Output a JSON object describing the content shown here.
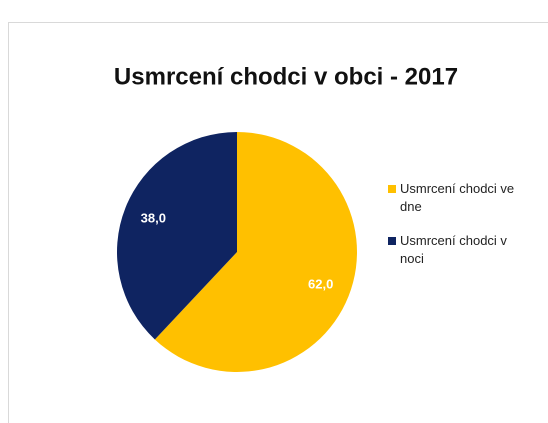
{
  "chart_data": {
    "type": "pie",
    "title": "Usmrcení chodci v obci - 2017",
    "categories": [
      "Usmrcení chodci ve dne",
      "Usmrcení chodci v noci"
    ],
    "values": [
      62.0,
      38.0
    ],
    "value_labels": [
      "62,0",
      "38,0"
    ],
    "colors": [
      "#FFC000",
      "#0F2461"
    ],
    "legend": "right"
  }
}
